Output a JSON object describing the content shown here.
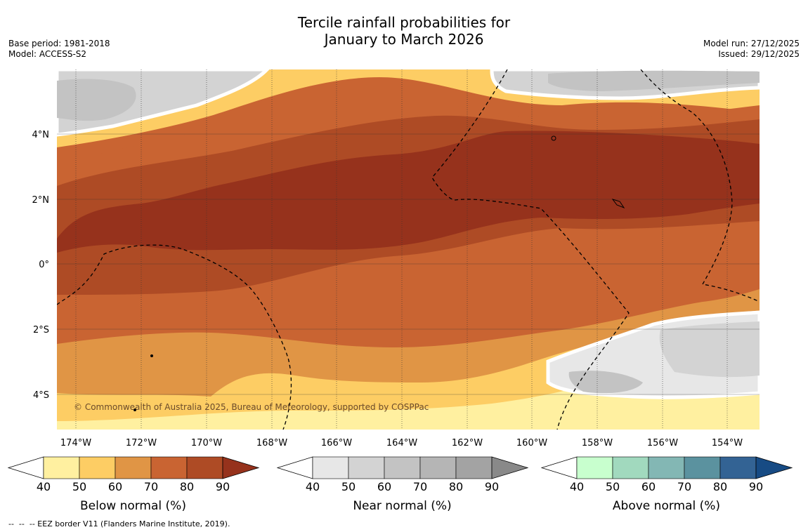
{
  "title": {
    "line1": "Tercile rainfall probabilities for",
    "line2": "January to March 2026"
  },
  "meta_left": {
    "base_period": "Base period: 1981-2018",
    "model": "Model: ACCESS-S2"
  },
  "meta_right": {
    "model_run": "Model run: 27/12/2025",
    "issued": "Issued: 29/12/2025"
  },
  "map": {
    "lat_labels": [
      "4°N",
      "2°N",
      "0°",
      "2°S",
      "4°S"
    ],
    "lon_labels": [
      "174°W",
      "172°W",
      "170°W",
      "168°W",
      "166°W",
      "164°W",
      "162°W",
      "160°W",
      "158°W",
      "156°W",
      "154°W"
    ],
    "copyright": "© Commonwealth of Australia 2025, Bureau of Meteorology, supported by COSPPac",
    "colors": {
      "below": [
        "#fff0a0",
        "#fdcd64",
        "#e09545",
        "#c96432",
        "#ae4b25",
        "#96321c"
      ],
      "near": [
        "#e7e7e7",
        "#d3d3d3",
        "#c3c3c3",
        "#b5b5b5",
        "#a3a3a3",
        "#898989"
      ],
      "above": [
        "#c8ffce",
        "#a1d9be",
        "#83b7b4",
        "#5b929f",
        "#336394",
        "#174b84"
      ]
    }
  },
  "colorbars": [
    {
      "title": "Below normal (%)",
      "ticks": [
        "40",
        "50",
        "60",
        "70",
        "80",
        "90"
      ]
    },
    {
      "title": "Near normal (%)",
      "ticks": [
        "40",
        "50",
        "60",
        "70",
        "80",
        "90"
      ]
    },
    {
      "title": "Above normal (%)",
      "ticks": [
        "40",
        "50",
        "60",
        "70",
        "80",
        "90"
      ]
    }
  ],
  "eez_note": "--  --  -- EEZ border V11 (Flanders Marine Institute, 2019)."
}
